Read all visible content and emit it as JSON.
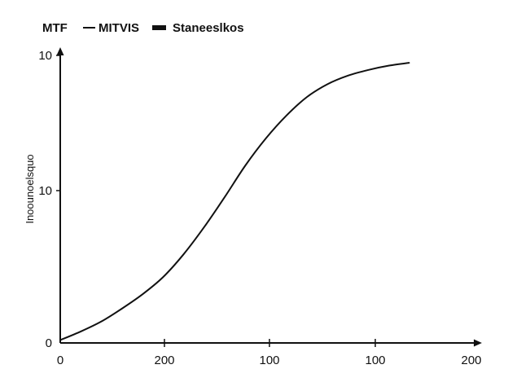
{
  "chart_data": {
    "type": "line",
    "title": "",
    "legend": {
      "placement": "top-left",
      "title": "MTF",
      "entries": [
        {
          "label": "MITVIS",
          "style": "line"
        },
        {
          "label": "Staneeslkos",
          "style": "bar"
        }
      ]
    },
    "xlabel": "",
    "ylabel": "Inoounoelsquo",
    "x_ticks": [
      "0",
      "200",
      "100",
      "100",
      "200"
    ],
    "y_ticks": [
      "0",
      "10",
      "10"
    ],
    "xlim": [
      0,
      4
    ],
    "ylim": [
      0,
      2
    ],
    "grid": false,
    "series": [
      {
        "color": "#111111",
        "x": [
          0,
          0.2,
          0.4,
          0.6,
          0.8,
          1.0,
          1.2,
          1.4,
          1.6,
          1.8,
          2.0,
          2.2,
          2.4,
          2.6,
          2.8,
          3.0,
          3.2,
          3.4
        ],
        "y": [
          0.02,
          0.08,
          0.15,
          0.24,
          0.34,
          0.46,
          0.62,
          0.81,
          1.02,
          1.24,
          1.43,
          1.59,
          1.72,
          1.81,
          1.87,
          1.91,
          1.94,
          1.96
        ]
      }
    ]
  }
}
